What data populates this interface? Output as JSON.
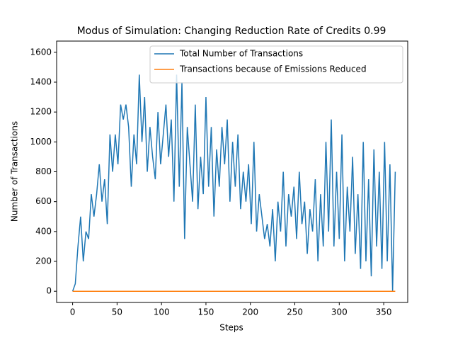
{
  "chart_data": {
    "type": "line",
    "title": "Modus of Simulation: Changing Reduction Rate of Credits 0.99",
    "x_label": "Steps",
    "y_label": "Number of Transactions",
    "x": [
      0,
      3,
      6,
      9,
      12,
      15,
      18,
      21,
      24,
      27,
      30,
      33,
      36,
      39,
      42,
      45,
      48,
      51,
      54,
      57,
      60,
      63,
      66,
      69,
      72,
      75,
      78,
      81,
      84,
      87,
      90,
      93,
      96,
      99,
      102,
      105,
      108,
      111,
      114,
      117,
      120,
      123,
      126,
      129,
      132,
      135,
      138,
      141,
      144,
      147,
      150,
      153,
      156,
      159,
      162,
      165,
      168,
      171,
      174,
      177,
      180,
      183,
      186,
      189,
      192,
      195,
      198,
      201,
      204,
      207,
      210,
      213,
      216,
      219,
      222,
      225,
      228,
      231,
      234,
      237,
      240,
      243,
      246,
      249,
      252,
      255,
      258,
      261,
      264,
      267,
      270,
      273,
      276,
      279,
      282,
      285,
      288,
      291,
      294,
      297,
      300,
      303,
      306,
      309,
      312,
      315,
      318,
      321,
      324,
      327,
      330,
      333,
      336,
      339,
      342,
      345,
      348,
      351,
      354,
      357,
      360,
      363
    ],
    "series": [
      {
        "name": "Total Number of Transactions",
        "color": "#1f77b4",
        "values": [
          0,
          50,
          300,
          500,
          200,
          400,
          350,
          650,
          500,
          650,
          850,
          600,
          750,
          450,
          1050,
          800,
          1050,
          850,
          1250,
          1150,
          1250,
          1100,
          700,
          1050,
          850,
          1450,
          1000,
          1300,
          800,
          1100,
          900,
          750,
          1200,
          850,
          1050,
          1250,
          900,
          1150,
          600,
          1450,
          700,
          1400,
          350,
          1100,
          850,
          600,
          1250,
          550,
          900,
          650,
          1300,
          700,
          1100,
          500,
          950,
          700,
          1100,
          850,
          1150,
          600,
          1000,
          700,
          1050,
          550,
          800,
          600,
          850,
          450,
          1000,
          400,
          650,
          500,
          350,
          450,
          300,
          550,
          200,
          600,
          400,
          800,
          300,
          650,
          500,
          700,
          350,
          800,
          450,
          600,
          250,
          550,
          400,
          750,
          200,
          650,
          300,
          1000,
          400,
          1150,
          300,
          800,
          350,
          1050,
          200,
          700,
          400,
          900,
          250,
          650,
          150,
          1000,
          200,
          750,
          100,
          950,
          300,
          800,
          150,
          1000,
          200,
          850,
          0,
          800
        ]
      },
      {
        "name": "Transactions because of Emissions Reduced",
        "color": "#ff7f0e",
        "x": [
          0,
          363
        ],
        "values": [
          0,
          0
        ]
      }
    ],
    "xlim": [
      -18,
      377
    ],
    "ylim": [
      -75,
      1675
    ],
    "xticks": [
      0,
      50,
      100,
      150,
      200,
      250,
      300,
      350
    ],
    "yticks": [
      0,
      200,
      400,
      600,
      800,
      1000,
      1200,
      1400,
      1600
    ],
    "legend": "upper right"
  }
}
